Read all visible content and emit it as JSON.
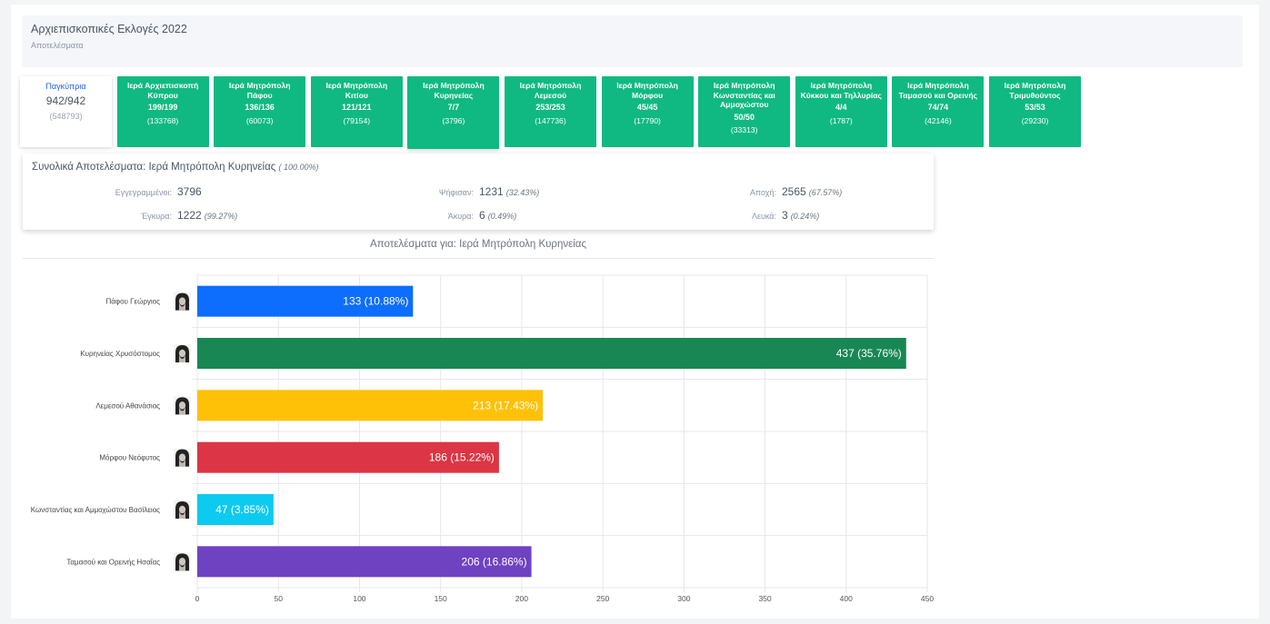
{
  "header": {
    "title": "Αρχιεπισκοπικές Εκλογές 2022",
    "subtitle": "Αποτελέσματα"
  },
  "tiles": [
    {
      "name": "Παγκύπρια",
      "count": "942/942",
      "registered": "(548793)"
    },
    {
      "name": "Ιερά Αρχιεπισκοπή Κύπρου",
      "count": "199/199",
      "registered": "(133768)"
    },
    {
      "name": "Ιερά Μητρόπολη Πάφου",
      "count": "136/136",
      "registered": "(60073)"
    },
    {
      "name": "Ιερά Μητρόπολη Κιτίου",
      "count": "121/121",
      "registered": "(79154)"
    },
    {
      "name": "Ιερά Μητρόπολη Κυρηνείας",
      "count": "7/7",
      "registered": "(3796)"
    },
    {
      "name": "Ιερά Μητρόπολη Λεμεσού",
      "count": "253/253",
      "registered": "(147736)"
    },
    {
      "name": "Ιερά Μητρόπολη Μόρφου",
      "count": "45/45",
      "registered": "(17790)"
    },
    {
      "name": "Ιερά Μητρόπολη Κωνσταντίας και Αμμοχώστου",
      "count": "50/50",
      "registered": "(33313)"
    },
    {
      "name": "Ιερά Μητρόπολη Κύκκου και Τηλλυρίας",
      "count": "4/4",
      "registered": "(1787)"
    },
    {
      "name": "Ιερά Μητρόπολη Ταμασού και Ορεινής",
      "count": "74/74",
      "registered": "(42146)"
    },
    {
      "name": "Ιερά Μητρόπολη Τριμυθούντος",
      "count": "53/53",
      "registered": "(29230)"
    }
  ],
  "summary": {
    "title": "Συνολικά Αποτελέσματα: Ιερά Μητρόπολη Κυρηνείας",
    "title_pct": "( 100.00%)",
    "registered_label": "Εγγεγραμμένοι:",
    "registered_value": "3796",
    "voted_label": "Ψήφισαν:",
    "voted_value": "1231",
    "voted_pct": "(32.43%)",
    "abstention_label": "Αποχή:",
    "abstention_value": "2565",
    "abstention_pct": "(67.57%)",
    "valid_label": "Έγκυρα:",
    "valid_value": "1222",
    "valid_pct": "(99.27%)",
    "invalid_label": "Άκυρα:",
    "invalid_value": "6",
    "invalid_pct": "(0.49%)",
    "blank_label": "Λευκά:",
    "blank_value": "3",
    "blank_pct": "(0.24%)"
  },
  "chart_data": {
    "type": "bar",
    "orientation": "horizontal",
    "title": "Αποτελέσματα για: Ιερά Μητρόπολη Κυρηνείας",
    "categories": [
      "Πάφου Γεώργιος",
      "Κυρηνείας Χρυσόστομος",
      "Λεμεσού Αθανάσιος",
      "Μόρφου Νεόφυτος",
      "Κωνσταντίας και Αμμοχώστου Βασίλειος",
      "Ταμασού και Ορεινής Ησαΐας"
    ],
    "values": [
      133,
      437,
      213,
      186,
      47,
      206
    ],
    "labels": [
      "133 (10.88%)",
      "437 (35.76%)",
      "213 (17.43%)",
      "186 (15.22%)",
      "47 (3.85%)",
      "206 (16.86%)"
    ],
    "colors": [
      "#0d6efd",
      "#198754",
      "#ffc107",
      "#dc3545",
      "#0dcaf0",
      "#6f42c1"
    ],
    "xlim": [
      0,
      450
    ],
    "xticks": [
      0,
      50,
      100,
      150,
      200,
      250,
      300,
      350,
      400,
      450
    ],
    "grid": true,
    "avatar_icon": "bishop-portrait-icon"
  }
}
